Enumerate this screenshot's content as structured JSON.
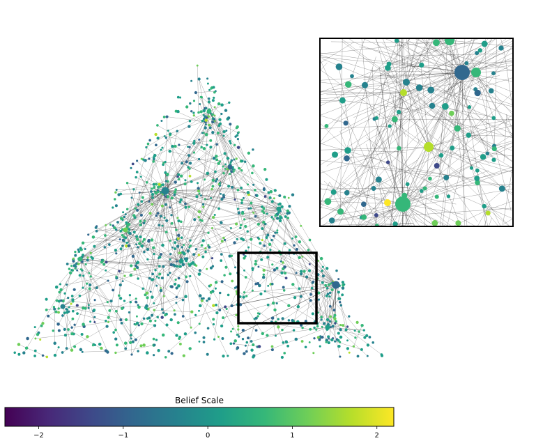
{
  "figure": {
    "type": "network-graph",
    "description_layout": "triangular-network-with-inset-zoom-and-colorbar",
    "edge_color": "#000000",
    "node_colormap": "viridis",
    "inset_frame_color": "#000000"
  },
  "colorbar": {
    "title": "Belief Scale",
    "min": -2.4,
    "max": 2.2,
    "ticks": [
      {
        "value": -2,
        "label": "−2"
      },
      {
        "value": -1,
        "label": "−1"
      },
      {
        "value": 0,
        "label": "0"
      },
      {
        "value": 1,
        "label": "1"
      },
      {
        "value": 2,
        "label": "2"
      }
    ],
    "colormap_stops": [
      "#440154",
      "#482878",
      "#3e4989",
      "#31688e",
      "#26828e",
      "#1f9e89",
      "#35b779",
      "#6ece58",
      "#b5de2b",
      "#fde725"
    ]
  }
}
